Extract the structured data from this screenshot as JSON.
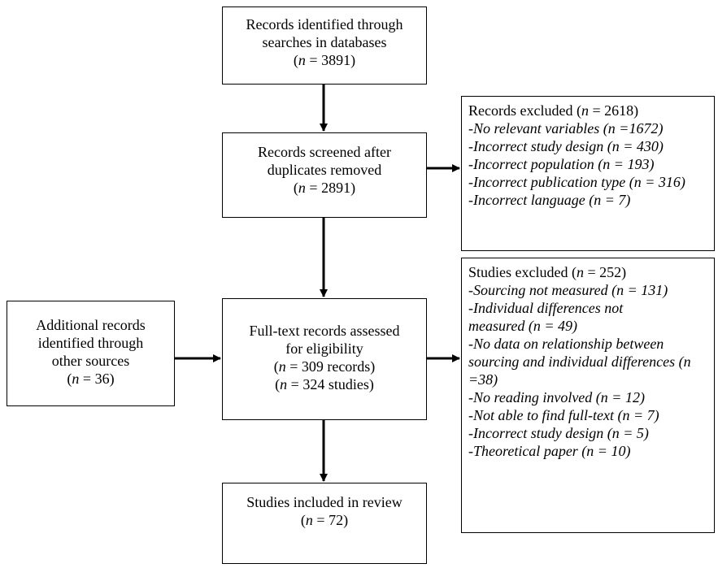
{
  "nodes": {
    "identified": {
      "lines": [
        "Records identified through",
        "searches in databases"
      ],
      "n_label": "n",
      "n_value": "= 3891"
    },
    "screened": {
      "lines": [
        "Records screened after",
        "duplicates removed"
      ],
      "n_label": "n",
      "n_value": "= 2891)"
    },
    "excluded_records": {
      "title": "Records excluded (",
      "title_n": "n",
      "title_value": " = 2618)",
      "items": [
        "-No relevant variables (n =1672)",
        "-Incorrect study design (n = 430)",
        "-Incorrect population (n = 193)",
        "-Incorrect publication type (n = 316)",
        "-Incorrect language (n = 7)"
      ]
    },
    "additional": {
      "lines": [
        "Additional records",
        "identified through",
        "other sources"
      ],
      "n_label": "n",
      "n_value": "= 36)"
    },
    "fulltext": {
      "lines": [
        "Full-text records assessed",
        "for eligibility"
      ],
      "n1_label": "n",
      "n1_value": "= 309 records)",
      "n2_label": "n",
      "n2_value": "= 324 studies)"
    },
    "excluded_studies": {
      "title": "Studies excluded (",
      "title_n": "n",
      "title_value": " = 252)",
      "items": [
        "-Sourcing not measured (n = 131)",
        "-Individual differences not measured (n = 49)",
        "-No data on relationship between sourcing and individual differences (n =38)",
        "-No reading involved (n = 12)",
        "-Not able to find full-text (n = 7)",
        "-Incorrect study design (n = 5)",
        "-Theoretical paper (n = 10)"
      ]
    },
    "included": {
      "lines": [
        "Studies included in review"
      ],
      "n_label": "n",
      "n_value": "= 72)"
    }
  }
}
